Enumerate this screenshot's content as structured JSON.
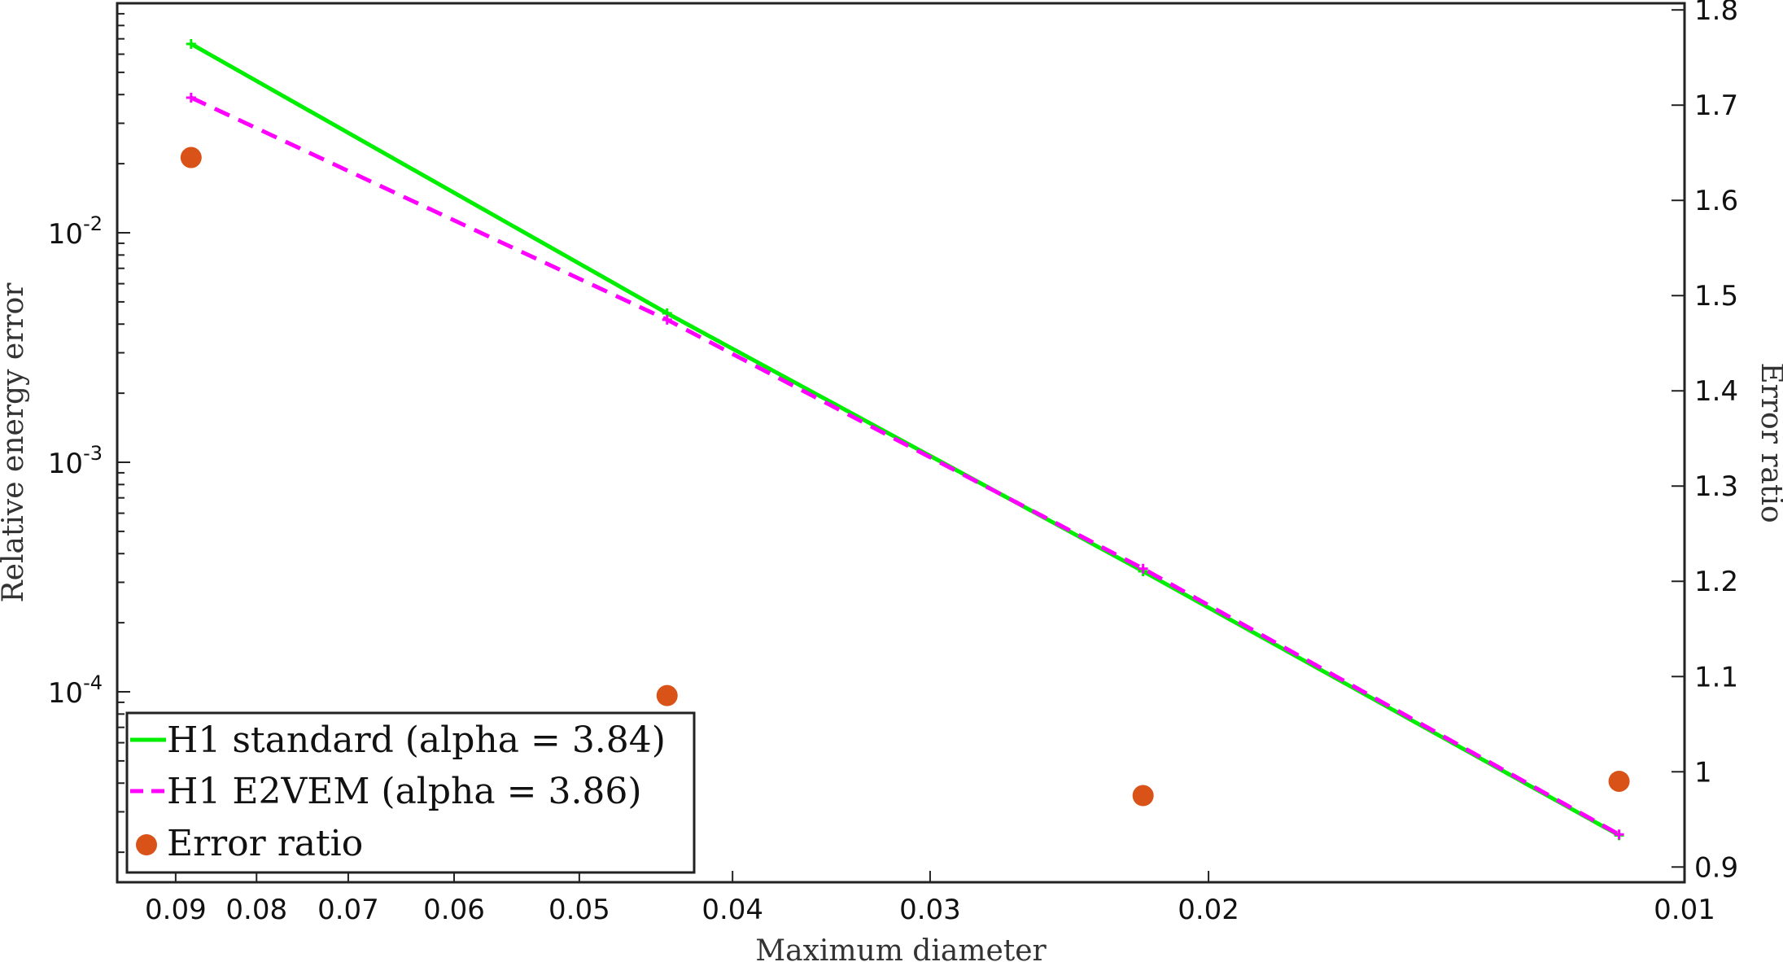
{
  "chart_data": {
    "type": "line",
    "x_axis": {
      "label": "Maximum diameter",
      "scale": "log",
      "reversed": true,
      "range": [
        0.098,
        0.01
      ],
      "ticks": [
        0.09,
        0.08,
        0.07,
        0.06,
        0.05,
        0.04,
        0.03,
        0.02,
        0.01
      ],
      "tick_labels": [
        "0.09",
        "0.08",
        "0.07",
        "0.06",
        "0.05",
        "0.04",
        "0.03",
        "0.02",
        "0.01"
      ]
    },
    "y_axis_left": {
      "label": "Relative energy error",
      "scale": "log",
      "range": [
        1.48e-05,
        0.1
      ],
      "ticks": [
        0.0001,
        0.001,
        0.01
      ],
      "tick_labels": [
        {
          "base": "10",
          "exp": "-4"
        },
        {
          "base": "10",
          "exp": "-3"
        },
        {
          "base": "10",
          "exp": "-2"
        }
      ]
    },
    "y_axis_right": {
      "label": "Error ratio",
      "scale": "linear",
      "range": [
        0.884,
        1.807
      ],
      "ticks": [
        0.9,
        1,
        1.1,
        1.2,
        1.3,
        1.4,
        1.5,
        1.6,
        1.7,
        1.8
      ],
      "tick_labels": [
        "0.9",
        "1",
        "1.1",
        "1.2",
        "1.3",
        "1.4",
        "1.5",
        "1.6",
        "1.7",
        "1.8"
      ]
    },
    "series": [
      {
        "name": "H1 standard (alpha = 3.84)",
        "axis": "left",
        "style": "solid",
        "marker": "plus",
        "color": "#00ee00",
        "x": [
          0.088,
          0.044,
          0.022,
          0.011
        ],
        "y": [
          0.0665,
          0.00446,
          0.000335,
          2.37e-05
        ]
      },
      {
        "name": "H1 E2VEM (alpha = 3.86)",
        "axis": "left",
        "style": "dashed",
        "marker": "plus",
        "color": "#ff00ff",
        "x": [
          0.088,
          0.044,
          0.022,
          0.011
        ],
        "y": [
          0.0388,
          0.00418,
          0.000344,
          2.39e-05
        ]
      },
      {
        "name": "Error ratio",
        "axis": "right",
        "style": "markers",
        "marker": "circle",
        "color": "#d95319",
        "x": [
          0.088,
          0.044,
          0.022,
          0.011
        ],
        "y": [
          1.645,
          1.08,
          0.975,
          0.99
        ]
      }
    ],
    "legend": {
      "position": "bottom-left",
      "entries": [
        "H1 standard (alpha = 3.84)",
        "H1 E2VEM (alpha = 3.86)",
        "Error ratio"
      ]
    },
    "grid": false
  }
}
